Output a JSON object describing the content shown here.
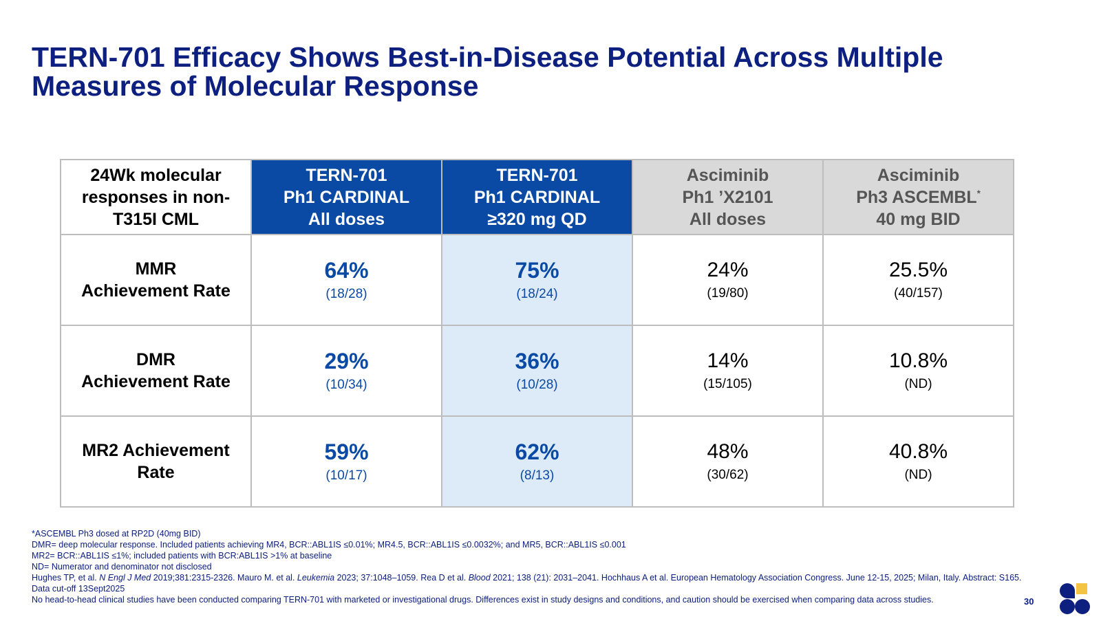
{
  "title": {
    "line1": "TERN-701 Efficacy Shows Best-in-Disease Potential Across Multiple",
    "line2": "Measures of Molecular Response"
  },
  "table": {
    "corner": [
      "24Wk molecular",
      "responses in non-",
      "T315I CML"
    ],
    "columns": [
      {
        "lines": [
          "TERN-701",
          "Ph1 CARDINAL",
          "All doses"
        ],
        "style": "tern"
      },
      {
        "lines": [
          "TERN-701",
          "Ph1 CARDINAL",
          "≥320 mg QD"
        ],
        "style": "tern"
      },
      {
        "lines": [
          "Asciminib",
          "Ph1 ’X2101",
          "All doses"
        ],
        "style": "asciminib"
      },
      {
        "lines": [
          "Asciminib",
          "Ph3 ASCEMBL",
          "40 mg BID"
        ],
        "superscript": "*",
        "style": "asciminib"
      }
    ],
    "rows": [
      {
        "label": [
          "MMR",
          "Achievement Rate"
        ],
        "cells": [
          {
            "pct": "64%",
            "frac": "(18/28)"
          },
          {
            "pct": "75%",
            "frac": "(18/24)"
          },
          {
            "pct": "24%",
            "frac": "(19/80)"
          },
          {
            "pct": "25.5%",
            "frac": "(40/157)"
          }
        ]
      },
      {
        "label": [
          "DMR",
          "Achievement Rate"
        ],
        "cells": [
          {
            "pct": "29%",
            "frac": "(10/34)"
          },
          {
            "pct": "36%",
            "frac": "(10/28)"
          },
          {
            "pct": "14%",
            "frac": "(15/105)"
          },
          {
            "pct": "10.8%",
            "frac": "(ND)"
          }
        ]
      },
      {
        "label": [
          "MR2 Achievement",
          "Rate"
        ],
        "cells": [
          {
            "pct": "59%",
            "frac": "(10/17)"
          },
          {
            "pct": "62%",
            "frac": "(8/13)"
          },
          {
            "pct": "48%",
            "frac": "(30/62)"
          },
          {
            "pct": "40.8%",
            "frac": "(ND)"
          }
        ]
      }
    ]
  },
  "footnotes": {
    "ascembl": "*ASCEMBL Ph3 dosed at RP2D (40mg BID)",
    "dmr": "DMR= deep molecular response. Included patients achieving MR4, BCR::ABL1IS ≤0.01%; MR4.5, BCR::ABL1IS ≤0.0032%; and MR5, BCR::ABL1IS ≤0.001",
    "mr2": "MR2= BCR::ABL1IS ≤1%; included patients with BCR:ABL1IS >1% at baseline",
    "nd": "ND= Numerator and denominator not disclosed",
    "refs": {
      "p1": "Hughes TP, et al. ",
      "j1": "N Engl J Med",
      "p2": " 2019;381:2315-2326. Mauro M. et al. ",
      "j2": "Leukemia",
      "p3": " 2023; 37:1048–1059. Rea D et al. ",
      "j3": "Blood",
      "p4": " 2021; 138 (21): 2031–2041. Hochhaus A et al. European Hematology Association Congress. June 12-15, 2025; Milan, Italy. Abstract: S165."
    },
    "cutoff": "Data cut-off 13Sept2025",
    "disclaimer": "No head-to-head clinical studies have been conducted comparing TERN-701 with marketed or investigational drugs. Differences exist in study designs and conditions, and caution should be exercised when comparing data across studies."
  },
  "page_number": "30",
  "colors": {
    "title": "#0d2080",
    "tern_header": "#0a4aa4",
    "highlight_column": "#ddeaf7",
    "asciminib_header": "#d9d9d9",
    "logo_navy": "#0d2080",
    "logo_gold": "#f3c344"
  },
  "logo": {
    "icon": "company-logo-icon"
  }
}
